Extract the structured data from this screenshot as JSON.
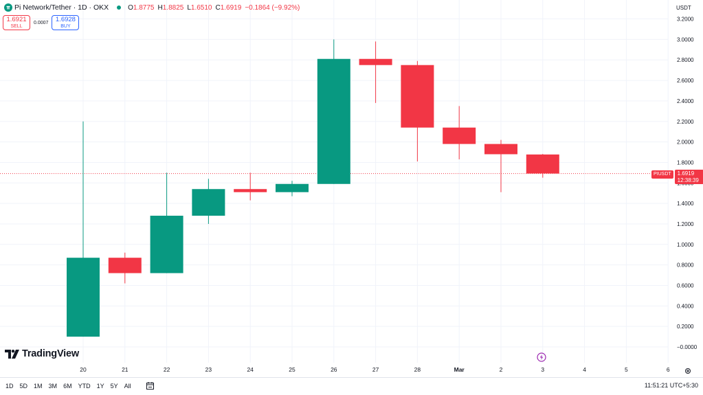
{
  "header": {
    "symbol_title": "Pi Network/Tether · 1D · OKX",
    "ohlc": [
      {
        "key": "O",
        "value": "1.8775"
      },
      {
        "key": "H",
        "value": "1.8825"
      },
      {
        "key": "L",
        "value": "1.6510"
      },
      {
        "key": "C",
        "value": "1.6919"
      },
      {
        "key": "",
        "value": "−0.1864 (−9.92%)"
      }
    ]
  },
  "trade": {
    "sell_price": "1.6921",
    "sell_label": "SELL",
    "spread": "0.0007",
    "buy_price": "1.6928",
    "buy_label": "BUY"
  },
  "currency_label": "USDT",
  "logo_text": "TradingView",
  "price_tag": {
    "symbol": "PIUSDT",
    "price": "1.6919",
    "countdown": "12:38:39"
  },
  "time_ranges": [
    "1D",
    "5D",
    "1M",
    "3M",
    "6M",
    "YTD",
    "1Y",
    "5Y",
    "All"
  ],
  "clock": "11:51:21 UTC+5:30",
  "colors": {
    "up": "#089981",
    "down": "#f23645",
    "grid": "#f0f3fa",
    "text": "#131722"
  },
  "icons": [
    "pi-network-icon",
    "live-status-icon",
    "tradingview-logo-icon",
    "calendar-range-icon",
    "flash-event-icon",
    "settings-gear-icon"
  ],
  "chart_data": {
    "type": "candlestick",
    "y_unit": "USDT",
    "ylim": [
      -0.1,
      3.2
    ],
    "y_ticks": [
      3.2,
      3.0,
      2.8,
      2.6,
      2.4,
      2.2,
      2.0,
      1.8,
      1.6,
      1.4,
      1.2,
      1.0,
      0.8,
      0.6,
      0.4,
      0.2,
      0.0
    ],
    "y_tick_labels": [
      "3.2000",
      "3.0000",
      "2.8000",
      "2.6000",
      "2.4000",
      "2.2000",
      "2.0000",
      "1.8000",
      "1.6000",
      "1.4000",
      "1.2000",
      "1.0000",
      "0.8000",
      "0.6000",
      "0.4000",
      "0.2000",
      "−0.0000"
    ],
    "x_labels": [
      "20",
      "21",
      "22",
      "23",
      "24",
      "25",
      "26",
      "27",
      "28",
      "Mar",
      "2",
      "3",
      "4",
      "5",
      "6"
    ],
    "candles": [
      {
        "date": "2025-02-20",
        "open": 0.1,
        "high": 2.2,
        "low": 0.1,
        "close": 0.87
      },
      {
        "date": "2025-02-21",
        "open": 0.87,
        "high": 0.92,
        "low": 0.62,
        "close": 0.72
      },
      {
        "date": "2025-02-22",
        "open": 0.72,
        "high": 1.7,
        "low": 0.72,
        "close": 1.28
      },
      {
        "date": "2025-02-23",
        "open": 1.28,
        "high": 1.64,
        "low": 1.2,
        "close": 1.54
      },
      {
        "date": "2025-02-24",
        "open": 1.54,
        "high": 1.7,
        "low": 1.43,
        "close": 1.51
      },
      {
        "date": "2025-02-25",
        "open": 1.51,
        "high": 1.62,
        "low": 1.47,
        "close": 1.59
      },
      {
        "date": "2025-02-26",
        "open": 1.59,
        "high": 3.0,
        "low": 1.59,
        "close": 2.81
      },
      {
        "date": "2025-02-27",
        "open": 2.81,
        "high": 2.98,
        "low": 2.38,
        "close": 2.75
      },
      {
        "date": "2025-02-28",
        "open": 2.75,
        "high": 2.79,
        "low": 1.81,
        "close": 2.14
      },
      {
        "date": "2025-03-01",
        "open": 2.14,
        "high": 2.35,
        "low": 1.83,
        "close": 1.98
      },
      {
        "date": "2025-03-02",
        "open": 1.98,
        "high": 2.02,
        "low": 1.51,
        "close": 1.88
      },
      {
        "date": "2025-03-03",
        "open": 1.8775,
        "high": 1.8825,
        "low": 1.651,
        "close": 1.6919
      }
    ],
    "last_price": 1.6919
  }
}
